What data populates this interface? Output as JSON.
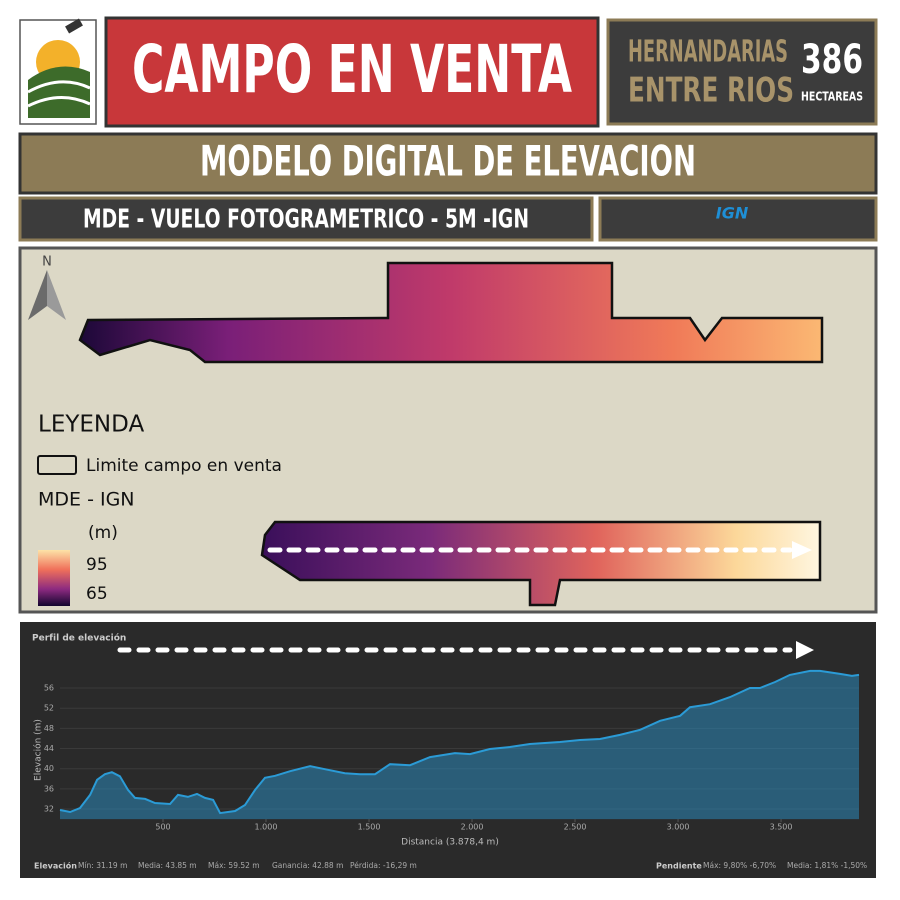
{
  "header": {
    "title": "CAMPO EN VENTA",
    "location": [
      "HERNANDARIAS",
      "ENTRE RIOS"
    ],
    "area": 386,
    "area_unit": "HECTAREAS"
  },
  "banner": "MODELO DIGITAL DE ELEVACION",
  "subtitle": "MDE - VUELO FOTOGRAMETRICO - 5M -IGN",
  "source_logo": "IGN",
  "map": {
    "north": "N",
    "legend": {
      "title": "LEYENDA",
      "boundary": "Limite campo en venta",
      "raster": "MDE - IGN",
      "unit": "(m)",
      "max": 95,
      "min": 65
    }
  },
  "chart_data": {
    "type": "area",
    "title": "Perfil de elevación",
    "x_label": "Distancia (3.878,4 m)",
    "y_label": "Elevación (m)",
    "x": [
      0,
      49,
      97,
      146,
      180,
      218,
      252,
      291,
      330,
      364,
      413,
      461,
      534,
      573,
      621,
      665,
      704,
      743,
      777,
      850,
      898,
      947,
      995,
      1044,
      1117,
      1214,
      1286,
      1383,
      1456,
      1529,
      1602,
      1699,
      1796,
      1917,
      1990,
      2087,
      2184,
      2281,
      2427,
      2524,
      2621,
      2718,
      2815,
      2913,
      3010,
      3058,
      3155,
      3252,
      3349,
      3398,
      3471,
      3543,
      3641,
      3689,
      3786,
      3844,
      3878.4
    ],
    "values": [
      31.8,
      31.4,
      32.2,
      34.8,
      37.8,
      38.9,
      39.3,
      38.5,
      35.8,
      34.2,
      34.0,
      33.2,
      33.0,
      34.8,
      34.4,
      35.0,
      34.2,
      33.8,
      31.2,
      31.6,
      32.8,
      35.8,
      38.2,
      38.6,
      39.5,
      40.5,
      39.9,
      39.1,
      38.9,
      38.9,
      40.9,
      40.7,
      42.3,
      43.1,
      42.9,
      43.9,
      44.3,
      44.9,
      45.3,
      45.7,
      45.9,
      46.7,
      47.7,
      49.5,
      50.5,
      52.2,
      52.8,
      54.2,
      56.0,
      56.0,
      57.2,
      58.6,
      59.4,
      59.4,
      58.8,
      58.4,
      58.6
    ],
    "color": "#2b9bd6",
    "xlim": [
      0,
      3878.4
    ],
    "ylim": [
      30,
      59.5
    ],
    "xticks": [
      500,
      {
        "value": 1000,
        "label": "1.000"
      },
      {
        "value": 1500,
        "label": "1.500"
      },
      {
        "value": 2000,
        "label": "2.000"
      },
      {
        "value": 2500,
        "label": "2.500"
      },
      {
        "value": 3000,
        "label": "3.000"
      },
      {
        "value": 3500,
        "label": "3.500"
      }
    ],
    "yticks": [
      32,
      36,
      40,
      44,
      48,
      52,
      56
    ],
    "grid": true
  },
  "stats": {
    "elevation": {
      "label": "Elevación",
      "items": [
        "Mín: 31.19 m",
        "Media: 43.85 m",
        "Máx: 59.52 m",
        "Ganancia: 42.88 m",
        "Pérdida: -16,29 m"
      ]
    },
    "slope": {
      "label": "Pendiente",
      "items": [
        "Máx: 9,80% -6,70%",
        "Media: 1,81% -1,50%"
      ]
    }
  }
}
